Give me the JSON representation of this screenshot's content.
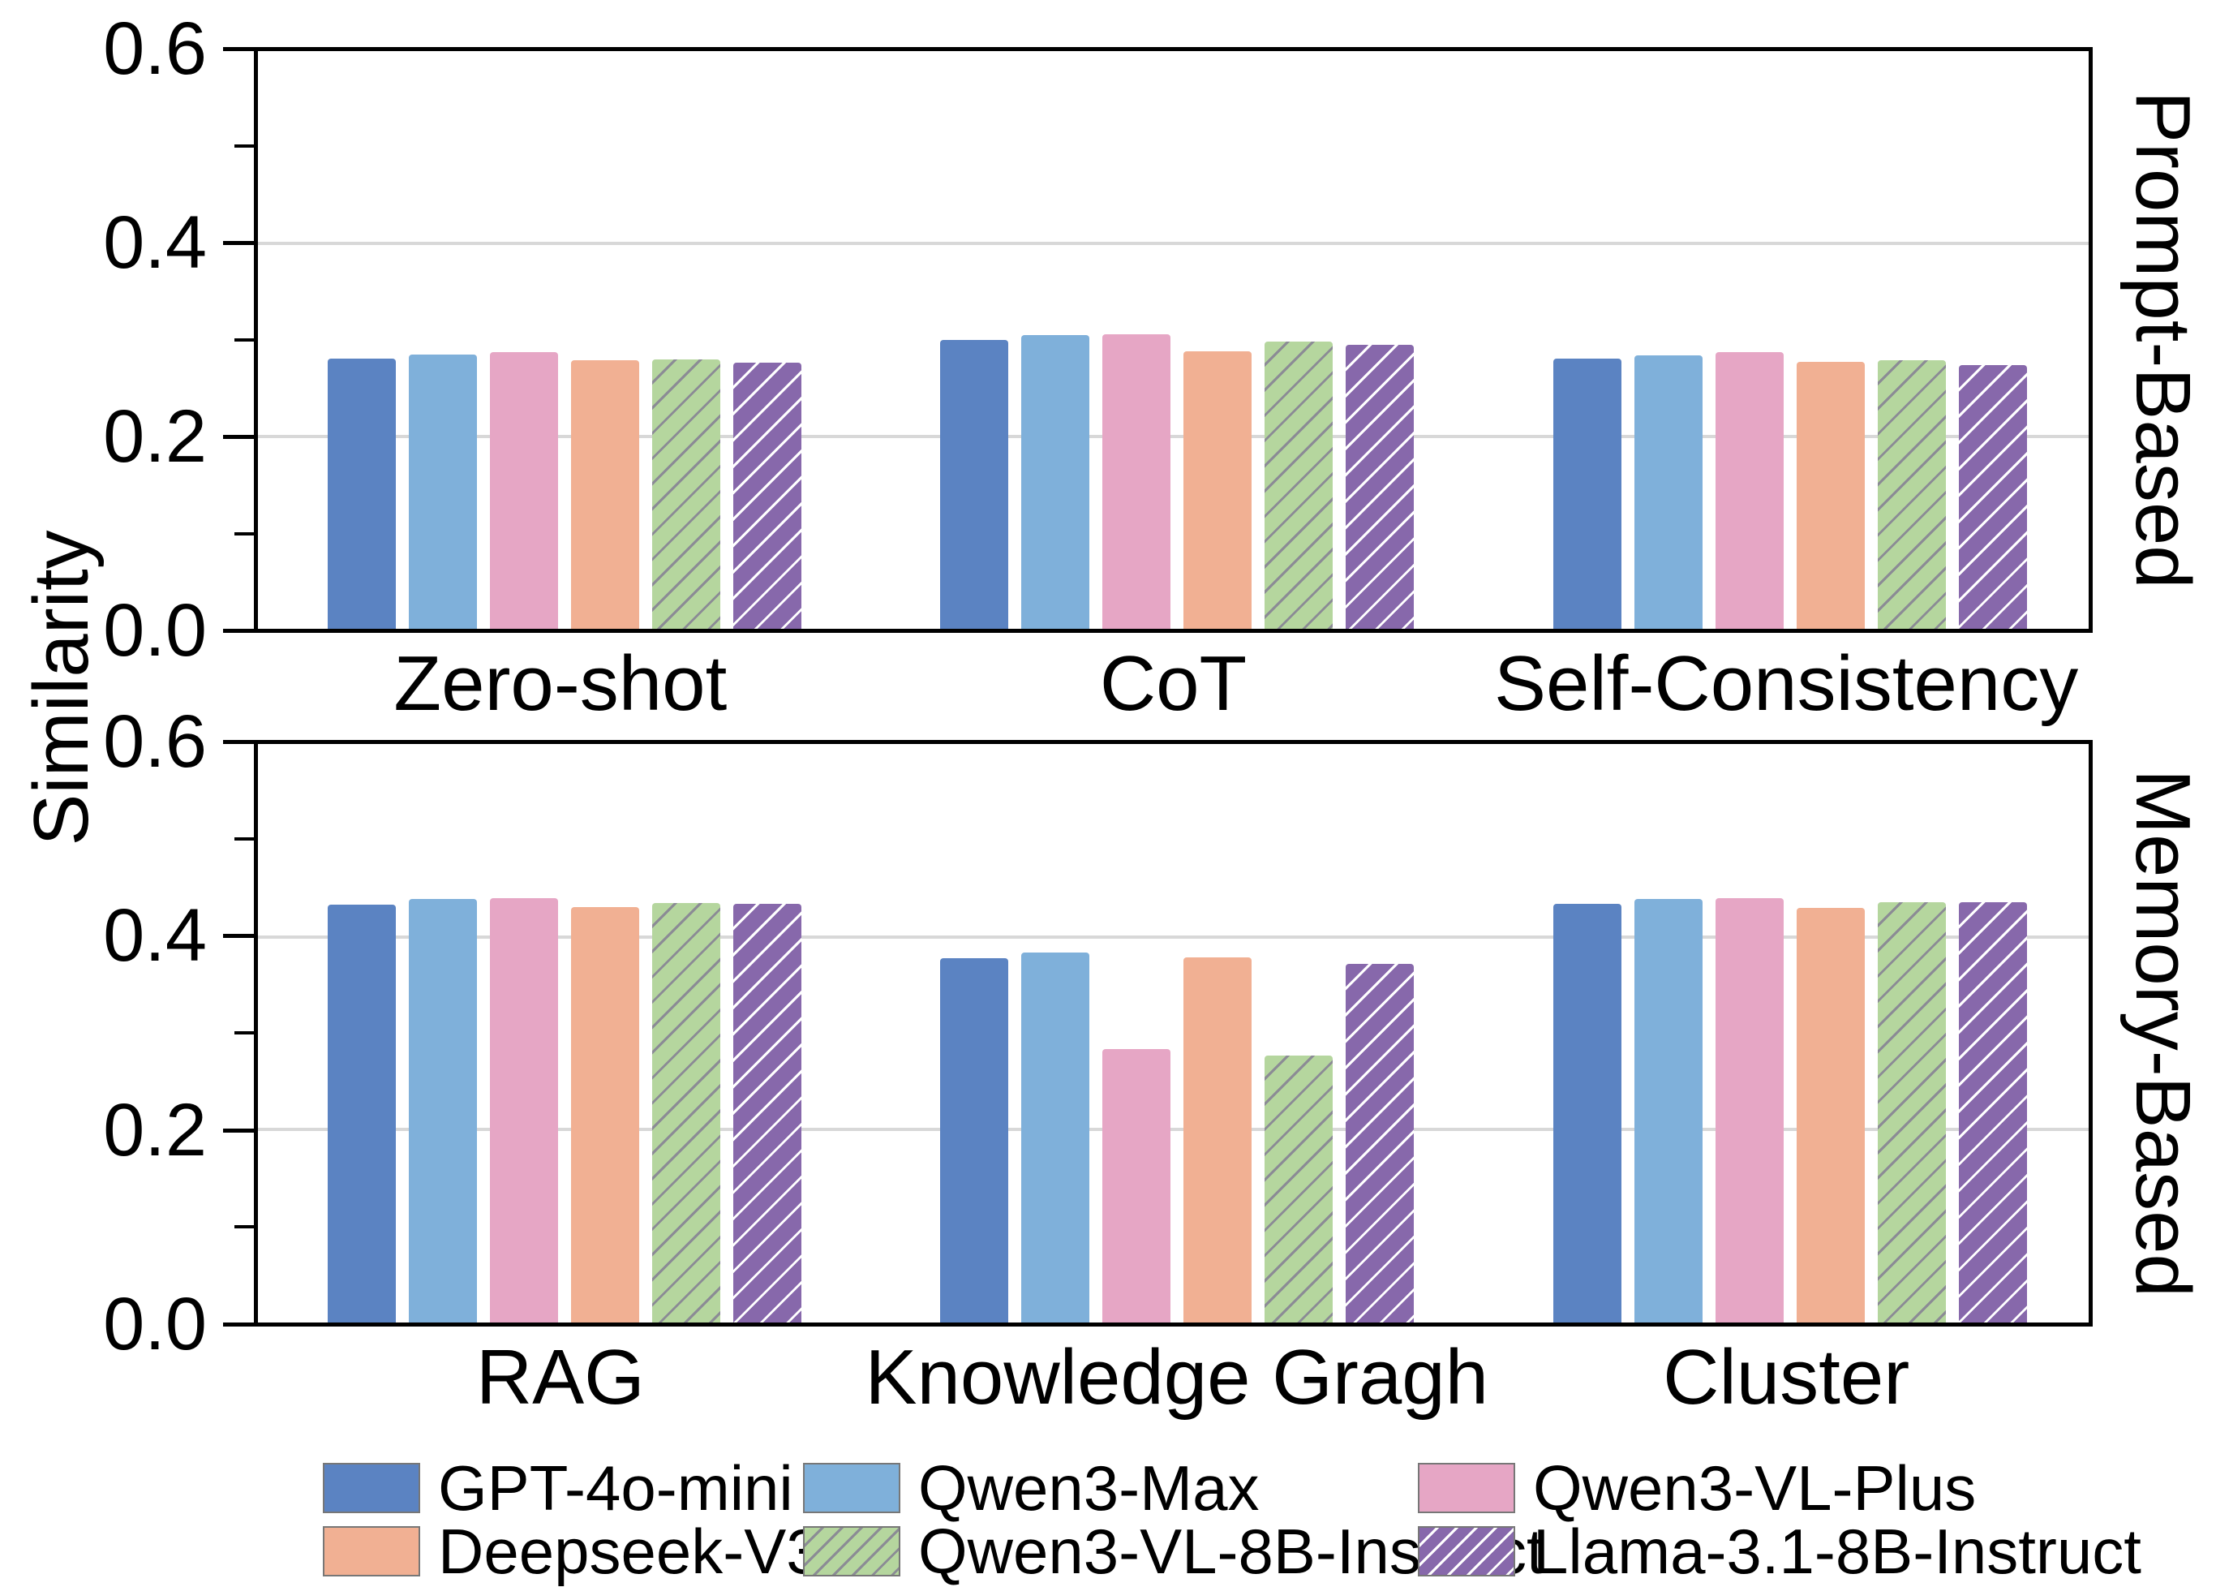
{
  "ylabel": "Similarity",
  "series_styles": [
    {
      "name": "GPT-4o-mini",
      "color": "#5b83c2",
      "hatch": "none"
    },
    {
      "name": "Qwen3-Max",
      "color": "#7fb0da",
      "hatch": "none"
    },
    {
      "name": "Qwen3-VL-Plus",
      "color": "#e6a6c5",
      "hatch": "none"
    },
    {
      "name": "Deepseek-V3.2",
      "color": "#f1b093",
      "hatch": "none"
    },
    {
      "name": "Qwen3-VL-8B-Instruct",
      "color": "#b5d69e",
      "hatch": "gray-diagonal"
    },
    {
      "name": "Llama-3.1-8B-Instruct",
      "color": "#8768ab",
      "hatch": "white-diagonal"
    }
  ],
  "chart_data": [
    {
      "type": "bar",
      "panel": "top",
      "row_label": "Prompt-Based",
      "categories": [
        "Zero-shot",
        "CoT",
        "Self-Consistency"
      ],
      "series": [
        {
          "name": "GPT-4o-mini",
          "values": [
            0.281,
            0.3,
            0.281
          ]
        },
        {
          "name": "Qwen3-Max",
          "values": [
            0.285,
            0.305,
            0.284
          ]
        },
        {
          "name": "Qwen3-VL-Plus",
          "values": [
            0.287,
            0.306,
            0.287
          ]
        },
        {
          "name": "Deepseek-V3.2",
          "values": [
            0.279,
            0.288,
            0.277
          ]
        },
        {
          "name": "Qwen3-VL-8B-Instruct",
          "values": [
            0.28,
            0.298,
            0.279
          ]
        },
        {
          "name": "Llama-3.1-8B-Instruct",
          "values": [
            0.276,
            0.295,
            0.274
          ]
        }
      ],
      "ylabel": "Similarity",
      "ylim": [
        0.0,
        0.6
      ],
      "yticks": [
        {
          "v": 0.6,
          "label": "0.6"
        },
        {
          "v": 0.4,
          "label": "0.4"
        },
        {
          "v": 0.2,
          "label": "0.2"
        },
        {
          "v": 0.0,
          "label": "0.0"
        }
      ],
      "yticks_minor": [
        0.5,
        0.3,
        0.1
      ],
      "gridlines": [
        0.4,
        0.2
      ],
      "grid": "major-horizontal",
      "legend_position": "below-figure"
    },
    {
      "type": "bar",
      "panel": "bottom",
      "row_label": "Memory-Based",
      "categories": [
        "RAG",
        "Knowledge Gragh",
        "Cluster"
      ],
      "series": [
        {
          "name": "GPT-4o-mini",
          "values": [
            0.433,
            0.378,
            0.434
          ]
        },
        {
          "name": "Qwen3-Max",
          "values": [
            0.439,
            0.384,
            0.439
          ]
        },
        {
          "name": "Qwen3-VL-Plus",
          "values": [
            0.44,
            0.284,
            0.44
          ]
        },
        {
          "name": "Deepseek-V3.2",
          "values": [
            0.431,
            0.379,
            0.43
          ]
        },
        {
          "name": "Qwen3-VL-8B-Instruct",
          "values": [
            0.435,
            0.277,
            0.436
          ]
        },
        {
          "name": "Llama-3.1-8B-Instruct",
          "values": [
            0.434,
            0.372,
            0.436
          ]
        }
      ],
      "ylabel": "Similarity",
      "ylim": [
        0.0,
        0.6
      ],
      "yticks": [
        {
          "v": 0.6,
          "label": "0.6"
        },
        {
          "v": 0.4,
          "label": "0.4"
        },
        {
          "v": 0.2,
          "label": "0.2"
        },
        {
          "v": 0.0,
          "label": "0.0"
        }
      ],
      "yticks_minor": [
        0.5,
        0.3,
        0.1
      ],
      "gridlines": [
        0.4,
        0.2
      ],
      "grid": "major-horizontal",
      "legend_position": "below-figure"
    }
  ],
  "legend": {
    "entries": [
      {
        "label": "GPT-4o-mini",
        "color": "#5b83c2",
        "hatch": "none"
      },
      {
        "label": "Qwen3-Max",
        "color": "#7fb0da",
        "hatch": "none"
      },
      {
        "label": "Qwen3-VL-Plus",
        "color": "#e6a6c5",
        "hatch": "none"
      },
      {
        "label": "Deepseek-V3.2",
        "color": "#f1b093",
        "hatch": "none"
      },
      {
        "label": "Qwen3-VL-8B-Instruct",
        "color": "#b5d69e",
        "hatch": "gray-diagonal"
      },
      {
        "label": "Llama-3.1-8B-Instruct",
        "color": "#8768ab",
        "hatch": "white-diagonal"
      }
    ]
  },
  "colors": {
    "spine": "#000000",
    "gridline": "#d8d8d8",
    "hatch_gray": "#8b8b95",
    "hatch_white": "#ffffff",
    "background": "#ffffff"
  }
}
